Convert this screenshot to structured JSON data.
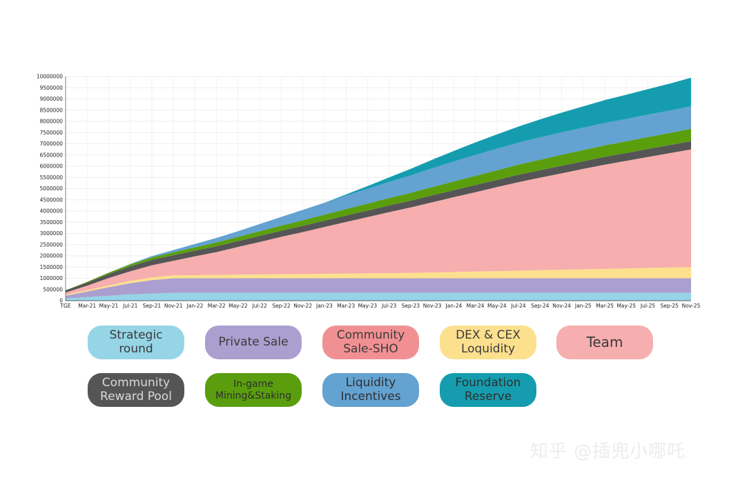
{
  "chart_data": {
    "type": "area",
    "stacked": true,
    "title": "",
    "xlabel": "",
    "ylabel": "",
    "ylim": [
      0,
      10000000
    ],
    "y_ticks": [
      "0",
      "500000",
      "1000000",
      "1500000",
      "2000000",
      "2500000",
      "3000000",
      "3500000",
      "4000000",
      "4500000",
      "5000000",
      "5500000",
      "6000000",
      "6500000",
      "7000000",
      "7500000",
      "8000000",
      "8500000",
      "9000000",
      "9500000",
      "10000000"
    ],
    "x_labels": [
      "TGE",
      "Mar-21",
      "May-21",
      "Jul-21",
      "Sep-21",
      "Nov-21",
      "Jan-22",
      "Mar-22",
      "May-22",
      "Jul-22",
      "Sep-22",
      "Nov-22",
      "Jan-23",
      "Mar-23",
      "May-23",
      "Jul-23",
      "Sep-23",
      "Nov-23",
      "Jan-24",
      "Mar-24",
      "May-24",
      "Jul-24",
      "Sep-24",
      "Nov-24",
      "Jan-25",
      "Mar-25",
      "May-25",
      "Jul-25",
      "Sep-25",
      "Nov-25"
    ],
    "grid": true,
    "legend_position": "bottom",
    "series": [
      {
        "name": "Strategic round",
        "color": "#95d5e6",
        "values": [
          100000,
          160000,
          220000,
          280000,
          320000,
          350000,
          350000,
          350000,
          350000,
          350000,
          350000,
          350000,
          350000,
          350000,
          350000,
          350000,
          350000,
          350000,
          350000,
          350000,
          350000,
          350000,
          350000,
          350000,
          350000,
          350000,
          350000,
          350000,
          350000,
          350000
        ]
      },
      {
        "name": "Private Sale",
        "color": "#ab9fcf",
        "values": [
          120000,
          250000,
          380000,
          500000,
          600000,
          650000,
          650000,
          650000,
          650000,
          650000,
          650000,
          650000,
          650000,
          650000,
          650000,
          650000,
          650000,
          650000,
          650000,
          650000,
          650000,
          650000,
          650000,
          650000,
          650000,
          650000,
          650000,
          650000,
          650000,
          650000
        ]
      },
      {
        "name": "Community Sale-SHO",
        "color": "#f19092",
        "values": [
          0,
          0,
          0,
          0,
          0,
          0,
          0,
          0,
          0,
          0,
          0,
          0,
          0,
          0,
          0,
          0,
          0,
          0,
          0,
          0,
          0,
          0,
          0,
          0,
          0,
          0,
          0,
          0,
          0,
          0
        ]
      },
      {
        "name": "DEX & CEX Loquidity",
        "color": "#fde08e",
        "values": [
          40000,
          60000,
          80000,
          100000,
          120000,
          130000,
          140000,
          150000,
          160000,
          170000,
          180000,
          190000,
          200000,
          210000,
          220000,
          230000,
          240000,
          260000,
          280000,
          300000,
          320000,
          340000,
          360000,
          380000,
          400000,
          420000,
          440000,
          460000,
          480000,
          500000
        ]
      },
      {
        "name": "Team",
        "color": "#f6aeae",
        "values": [
          100000,
          200000,
          330000,
          430000,
          540000,
          650000,
          840000,
          1020000,
          1240000,
          1450000,
          1670000,
          1870000,
          2090000,
          2300000,
          2510000,
          2720000,
          2920000,
          3130000,
          3340000,
          3540000,
          3750000,
          3950000,
          4130000,
          4300000,
          4480000,
          4650000,
          4800000,
          4950000,
          5100000,
          5250000
        ]
      },
      {
        "name": "Community Reward Pool",
        "color": "#555555",
        "values": [
          100000,
          140000,
          180000,
          220000,
          240000,
          250000,
          250000,
          260000,
          260000,
          270000,
          270000,
          280000,
          280000,
          290000,
          290000,
          300000,
          300000,
          310000,
          310000,
          320000,
          320000,
          330000,
          330000,
          340000,
          340000,
          350000,
          350000,
          360000,
          360000,
          370000
        ]
      },
      {
        "name": "In-game Mining&Staking",
        "color": "#5a9e0e",
        "values": [
          0,
          30000,
          60000,
          90000,
          110000,
          130000,
          150000,
          170000,
          190000,
          210000,
          230000,
          250000,
          270000,
          290000,
          310000,
          330000,
          350000,
          370000,
          390000,
          410000,
          430000,
          450000,
          470000,
          490000,
          500000,
          510000,
          520000,
          530000,
          540000,
          550000
        ]
      },
      {
        "name": "Liquidity Incentives",
        "color": "#63a2d1",
        "values": [
          0,
          0,
          0,
          20000,
          60000,
          100000,
          150000,
          200000,
          250000,
          320000,
          390000,
          460000,
          530000,
          600000,
          660000,
          720000,
          780000,
          840000,
          890000,
          930000,
          960000,
          980000,
          1000000,
          1000000,
          1000000,
          1000000,
          1000000,
          1000000,
          1000000,
          1000000
        ]
      },
      {
        "name": "Foundation Reserve",
        "color": "#159daf",
        "values": [
          0,
          0,
          0,
          0,
          0,
          0,
          0,
          0,
          0,
          0,
          0,
          0,
          0,
          50000,
          120000,
          200000,
          290000,
          380000,
          470000,
          560000,
          640000,
          720000,
          800000,
          880000,
          950000,
          1020000,
          1080000,
          1140000,
          1200000,
          1280000
        ]
      }
    ]
  },
  "legend_items": [
    {
      "label": "Strategic round",
      "bg": "#95d5e6",
      "fg": "#3a3a3a"
    },
    {
      "label": "Private Sale",
      "bg": "#ab9fcf",
      "fg": "#3a3a3a"
    },
    {
      "label": "Community\nSale-SHO",
      "bg": "#f19092",
      "fg": "#3a3a3a"
    },
    {
      "label": "DEX & CEX\nLoquidity",
      "bg": "#fde08e",
      "fg": "#3a3a3a"
    },
    {
      "label": "Team",
      "bg": "#f6aeae",
      "fg": "#3a3a3a"
    },
    {
      "label": "Community\nReward Pool",
      "bg": "#555555",
      "fg": "#d9d9d9"
    },
    {
      "label": "In-game\nMining&Staking",
      "bg": "#5a9e0e",
      "fg": "#2e2e2e"
    },
    {
      "label": "Liquidity\nIncentives",
      "bg": "#63a2d1",
      "fg": "#2e2e2e"
    },
    {
      "label": "Foundation\nReserve",
      "bg": "#159daf",
      "fg": "#2e2e2e"
    }
  ],
  "watermark": "知乎 @插兜小哪吒"
}
